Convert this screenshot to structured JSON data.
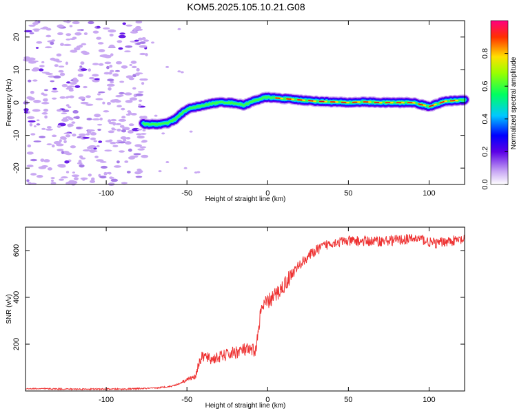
{
  "title": "KOM5.2025.105.10.21.G08",
  "colors": {
    "snr_line": "#ee3333",
    "axis": "#000000",
    "noise": "#c9a8f2"
  },
  "chart_data": [
    {
      "type": "heatmap",
      "xlabel": "Height of straight line (km)",
      "ylabel": "Frequency (Hz)",
      "xlim": [
        -150,
        122
      ],
      "ylim": [
        -25,
        25
      ],
      "xticks": [
        "-100",
        "-50",
        "0",
        "50",
        "100"
      ],
      "yticks": [
        "-20",
        "-10",
        "0",
        "10",
        "20"
      ],
      "colorbar": {
        "label": "Normalized spectral amplitude",
        "range": [
          0,
          1
        ],
        "ticks": [
          "0.0",
          "0.2",
          "0.4",
          "0.6",
          "0.8"
        ]
      },
      "signal_track": {
        "height_km": [
          -77,
          -70,
          -62,
          -57,
          -52,
          -47,
          -42,
          -35,
          -28,
          -20,
          -15,
          -8,
          -3,
          0,
          10,
          20,
          30,
          40,
          50,
          60,
          70,
          80,
          90,
          95,
          100,
          104,
          110,
          122
        ],
        "freq_hz": [
          -6.5,
          -6.7,
          -6.3,
          -5,
          -2.8,
          -1.5,
          -1.2,
          -0.3,
          0.1,
          -0.2,
          -0.8,
          0.6,
          1.4,
          1.6,
          1.2,
          0.8,
          0.4,
          0.2,
          0,
          0.2,
          0,
          0,
          0,
          -0.6,
          -1.2,
          -0.6,
          0.4,
          0.8
        ]
      }
    },
    {
      "type": "line",
      "xlabel": "Height of straight line (km)",
      "ylabel": "SNR (v/v)",
      "xlim": [
        -150,
        122
      ],
      "ylim": [
        0,
        700
      ],
      "xticks": [
        "-100",
        "-50",
        "0",
        "50",
        "100"
      ],
      "yticks": [
        "200",
        "400",
        "600"
      ],
      "series": [
        {
          "name": "SNR",
          "x": [
            -150,
            -120,
            -90,
            -70,
            -60,
            -55,
            -50,
            -45,
            -42,
            -40,
            -35,
            -25,
            -18,
            -15,
            -10,
            -7,
            -5,
            -3,
            0,
            5,
            10,
            15,
            20,
            25,
            30,
            35,
            40,
            50,
            60,
            70,
            80,
            90,
            95,
            100,
            105,
            110,
            122
          ],
          "y": [
            10,
            8,
            8,
            12,
            20,
            30,
            50,
            60,
            130,
            150,
            135,
            155,
            170,
            175,
            170,
            180,
            310,
            360,
            380,
            410,
            450,
            500,
            540,
            575,
            600,
            620,
            635,
            640,
            640,
            640,
            645,
            650,
            650,
            635,
            630,
            640,
            645
          ]
        }
      ]
    }
  ]
}
